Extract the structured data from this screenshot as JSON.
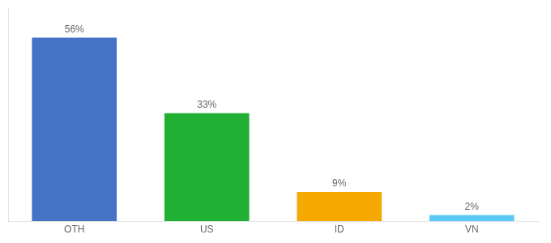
{
  "chart_data": {
    "type": "bar",
    "categories": [
      "OTH",
      "US",
      "ID",
      "VN"
    ],
    "values": [
      56,
      33,
      9,
      2
    ],
    "value_labels": [
      "56%",
      "33%",
      "9%",
      "2%"
    ],
    "colors": [
      "#4472C4",
      "#21B033",
      "#F5A800",
      "#5BC8F5"
    ],
    "ylim": [
      0,
      65
    ],
    "data_labels": true,
    "tick_labels": "x",
    "grid": false
  }
}
